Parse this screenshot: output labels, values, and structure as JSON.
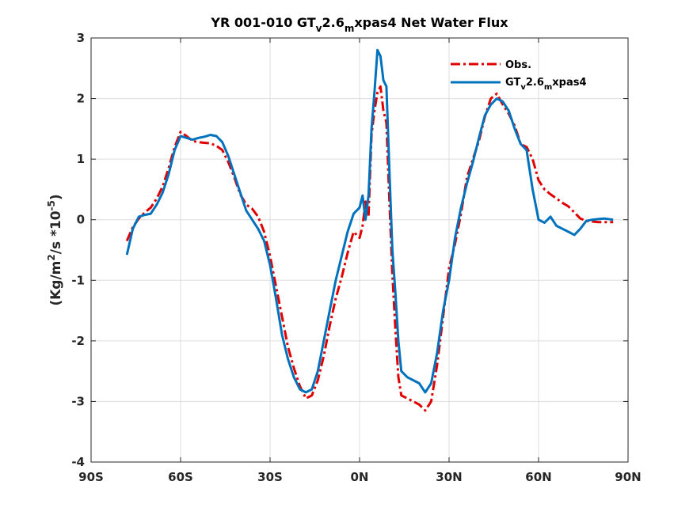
{
  "chart_data": {
    "type": "line",
    "title": {
      "prefix": "YR 001-010 GT",
      "sub1": "v",
      "mid": "2.6",
      "sub2": "m",
      "suffix": "xpas4  Net Water Flux"
    },
    "ylabel": {
      "main": "(Kg/m",
      "sup1": "2",
      "mid": "/s *10",
      "sup2": "-5",
      "end": ")"
    },
    "xlabel": "",
    "xlim": [
      -90,
      90
    ],
    "ylim": [
      -4,
      3
    ],
    "grid": true,
    "legend_position": "top-right",
    "x_ticks": [
      {
        "value": -90,
        "label": "90S"
      },
      {
        "value": -60,
        "label": "60S"
      },
      {
        "value": -30,
        "label": "30S"
      },
      {
        "value": 0,
        "label": "0N"
      },
      {
        "value": 30,
        "label": "30N"
      },
      {
        "value": 60,
        "label": "60N"
      },
      {
        "value": 90,
        "label": "90N"
      }
    ],
    "y_ticks": [
      {
        "value": -4,
        "label": "-4"
      },
      {
        "value": -3,
        "label": "-3"
      },
      {
        "value": -2,
        "label": "-2"
      },
      {
        "value": -1,
        "label": "-1"
      },
      {
        "value": 0,
        "label": "0"
      },
      {
        "value": 1,
        "label": "1"
      },
      {
        "value": 2,
        "label": "2"
      },
      {
        "value": 3,
        "label": "3"
      }
    ],
    "series": [
      {
        "name": "Obs.",
        "color": "#e00000",
        "dash": "dashdot",
        "points": [
          [
            -78,
            -0.35
          ],
          [
            -76,
            -0.12
          ],
          [
            -74,
            0.02
          ],
          [
            -72,
            0.12
          ],
          [
            -70,
            0.2
          ],
          [
            -68,
            0.35
          ],
          [
            -66,
            0.55
          ],
          [
            -64,
            0.85
          ],
          [
            -62,
            1.2
          ],
          [
            -60,
            1.45
          ],
          [
            -58,
            1.38
          ],
          [
            -56,
            1.3
          ],
          [
            -54,
            1.28
          ],
          [
            -52,
            1.27
          ],
          [
            -50,
            1.26
          ],
          [
            -48,
            1.22
          ],
          [
            -46,
            1.15
          ],
          [
            -44,
            0.95
          ],
          [
            -42,
            0.7
          ],
          [
            -40,
            0.42
          ],
          [
            -38,
            0.25
          ],
          [
            -36,
            0.18
          ],
          [
            -34,
            0.05
          ],
          [
            -32,
            -0.2
          ],
          [
            -30,
            -0.6
          ],
          [
            -28,
            -1.1
          ],
          [
            -26,
            -1.6
          ],
          [
            -24,
            -2.1
          ],
          [
            -22,
            -2.45
          ],
          [
            -20,
            -2.75
          ],
          [
            -18,
            -2.95
          ],
          [
            -16,
            -2.9
          ],
          [
            -14,
            -2.65
          ],
          [
            -12,
            -2.25
          ],
          [
            -10,
            -1.75
          ],
          [
            -8,
            -1.3
          ],
          [
            -6,
            -0.95
          ],
          [
            -4,
            -0.55
          ],
          [
            -2,
            -0.2
          ],
          [
            0,
            -0.3
          ],
          [
            1,
            -0.1
          ],
          [
            2,
            0.3
          ],
          [
            3,
            0.05
          ],
          [
            4,
            1.4
          ],
          [
            5,
            1.8
          ],
          [
            6,
            2.1
          ],
          [
            7,
            2.2
          ],
          [
            8,
            1.8
          ],
          [
            9,
            1.6
          ],
          [
            10,
            0.3
          ],
          [
            11,
            -0.9
          ],
          [
            12,
            -1.8
          ],
          [
            13,
            -2.6
          ],
          [
            14,
            -2.9
          ],
          [
            16,
            -2.95
          ],
          [
            18,
            -3.0
          ],
          [
            20,
            -3.05
          ],
          [
            22,
            -3.15
          ],
          [
            24,
            -3.0
          ],
          [
            26,
            -2.4
          ],
          [
            28,
            -1.6
          ],
          [
            30,
            -0.8
          ],
          [
            32,
            -0.4
          ],
          [
            34,
            0.1
          ],
          [
            36,
            0.7
          ],
          [
            38,
            1.0
          ],
          [
            40,
            1.3
          ],
          [
            42,
            1.7
          ],
          [
            44,
            2.0
          ],
          [
            46,
            2.08
          ],
          [
            48,
            1.9
          ],
          [
            50,
            1.75
          ],
          [
            52,
            1.55
          ],
          [
            54,
            1.25
          ],
          [
            56,
            1.2
          ],
          [
            58,
            1.0
          ],
          [
            60,
            0.65
          ],
          [
            62,
            0.5
          ],
          [
            64,
            0.42
          ],
          [
            66,
            0.35
          ],
          [
            68,
            0.28
          ],
          [
            70,
            0.22
          ],
          [
            72,
            0.12
          ],
          [
            74,
            0.02
          ],
          [
            76,
            -0.02
          ],
          [
            78,
            -0.03
          ],
          [
            80,
            -0.04
          ],
          [
            85,
            -0.04
          ]
        ]
      },
      {
        "name": "GT_v2.6_mxpas4",
        "label": {
          "prefix": "GT",
          "sub1": "v",
          "mid": "2.6",
          "sub2": "m",
          "suffix": "xpas4"
        },
        "color": "#0072bd",
        "dash": "solid",
        "points": [
          [
            -78,
            -0.58
          ],
          [
            -76,
            -0.15
          ],
          [
            -74,
            0.05
          ],
          [
            -72,
            0.08
          ],
          [
            -70,
            0.1
          ],
          [
            -68,
            0.25
          ],
          [
            -66,
            0.45
          ],
          [
            -64,
            0.75
          ],
          [
            -62,
            1.15
          ],
          [
            -60,
            1.38
          ],
          [
            -58,
            1.35
          ],
          [
            -56,
            1.32
          ],
          [
            -54,
            1.35
          ],
          [
            -52,
            1.37
          ],
          [
            -50,
            1.4
          ],
          [
            -48,
            1.38
          ],
          [
            -46,
            1.28
          ],
          [
            -44,
            1.05
          ],
          [
            -42,
            0.75
          ],
          [
            -40,
            0.45
          ],
          [
            -38,
            0.15
          ],
          [
            -36,
            0.0
          ],
          [
            -34,
            -0.15
          ],
          [
            -32,
            -0.35
          ],
          [
            -30,
            -0.75
          ],
          [
            -28,
            -1.3
          ],
          [
            -26,
            -1.9
          ],
          [
            -24,
            -2.3
          ],
          [
            -22,
            -2.6
          ],
          [
            -20,
            -2.8
          ],
          [
            -18,
            -2.85
          ],
          [
            -16,
            -2.8
          ],
          [
            -14,
            -2.5
          ],
          [
            -12,
            -2.0
          ],
          [
            -10,
            -1.5
          ],
          [
            -8,
            -1.0
          ],
          [
            -6,
            -0.6
          ],
          [
            -4,
            -0.2
          ],
          [
            -2,
            0.1
          ],
          [
            0,
            0.2
          ],
          [
            1,
            0.4
          ],
          [
            2,
            0.0
          ],
          [
            3,
            0.4
          ],
          [
            4,
            1.5
          ],
          [
            5,
            2.1
          ],
          [
            6,
            2.8
          ],
          [
            7,
            2.7
          ],
          [
            8,
            2.3
          ],
          [
            9,
            2.2
          ],
          [
            10,
            0.8
          ],
          [
            11,
            -0.5
          ],
          [
            12,
            -1.2
          ],
          [
            13,
            -2.0
          ],
          [
            14,
            -2.5
          ],
          [
            16,
            -2.6
          ],
          [
            18,
            -2.65
          ],
          [
            20,
            -2.7
          ],
          [
            22,
            -2.85
          ],
          [
            24,
            -2.7
          ],
          [
            26,
            -2.2
          ],
          [
            28,
            -1.5
          ],
          [
            30,
            -1.0
          ],
          [
            32,
            -0.3
          ],
          [
            34,
            0.2
          ],
          [
            36,
            0.6
          ],
          [
            38,
            0.95
          ],
          [
            40,
            1.35
          ],
          [
            42,
            1.72
          ],
          [
            44,
            1.9
          ],
          [
            46,
            2.0
          ],
          [
            48,
            1.95
          ],
          [
            50,
            1.8
          ],
          [
            52,
            1.5
          ],
          [
            54,
            1.25
          ],
          [
            56,
            1.15
          ],
          [
            58,
            0.5
          ],
          [
            60,
            0.0
          ],
          [
            62,
            -0.05
          ],
          [
            64,
            0.05
          ],
          [
            66,
            -0.1
          ],
          [
            68,
            -0.15
          ],
          [
            70,
            -0.2
          ],
          [
            72,
            -0.25
          ],
          [
            74,
            -0.15
          ],
          [
            76,
            -0.02
          ],
          [
            78,
            0.0
          ],
          [
            80,
            0.01
          ],
          [
            82,
            0.02
          ],
          [
            85,
            0.0
          ]
        ]
      }
    ]
  }
}
